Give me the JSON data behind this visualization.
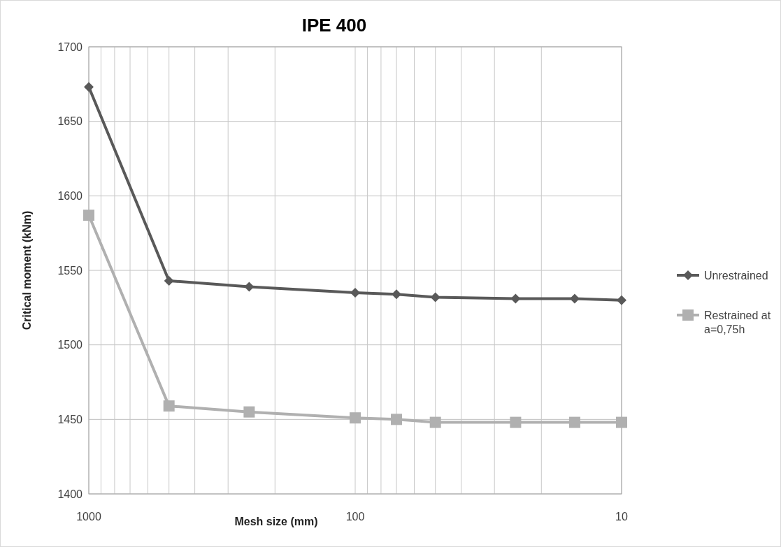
{
  "chart_data": {
    "type": "line",
    "title": "IPE 400",
    "xlabel": "Mesh size (mm)",
    "ylabel": "Critical moment (kNm)",
    "x": [
      1000,
      500,
      250,
      100,
      70,
      50,
      25,
      15,
      10
    ],
    "series": [
      {
        "name": "Unrestrained",
        "color": "#595959",
        "marker": "diamond",
        "values": [
          1673,
          1543,
          1539,
          1535,
          1534,
          1532,
          1531,
          1531,
          1530
        ]
      },
      {
        "name": "Restrained at a=0,75h",
        "color": "#b0b0b0",
        "marker": "square",
        "values": [
          1587,
          1459,
          1455,
          1451,
          1450,
          1448,
          1448,
          1448,
          1448
        ]
      }
    ],
    "log": "x",
    "xlim": [
      1000,
      10
    ],
    "xticks": [
      1000,
      {
        "value": 900,
        "label": null
      },
      {
        "value": 800,
        "label": null
      },
      {
        "value": 700,
        "label": null
      },
      {
        "value": 600,
        "label": null
      },
      {
        "value": 500,
        "label": null
      },
      {
        "value": 400,
        "label": null
      },
      {
        "value": 300,
        "label": null
      },
      {
        "value": 200,
        "label": null
      },
      100,
      {
        "value": 90,
        "label": null
      },
      {
        "value": 80,
        "label": null
      },
      {
        "value": 70,
        "label": null
      },
      {
        "value": 60,
        "label": null
      },
      {
        "value": 50,
        "label": null
      },
      {
        "value": 40,
        "label": null
      },
      {
        "value": 30,
        "label": null
      },
      {
        "value": 20,
        "label": null
      },
      10
    ],
    "ylim": [
      1400,
      1700
    ],
    "yticks": [
      1400,
      1450,
      1500,
      1550,
      1600,
      1650,
      1700
    ],
    "grid": true,
    "legend": "right",
    "line_style": "solid"
  }
}
